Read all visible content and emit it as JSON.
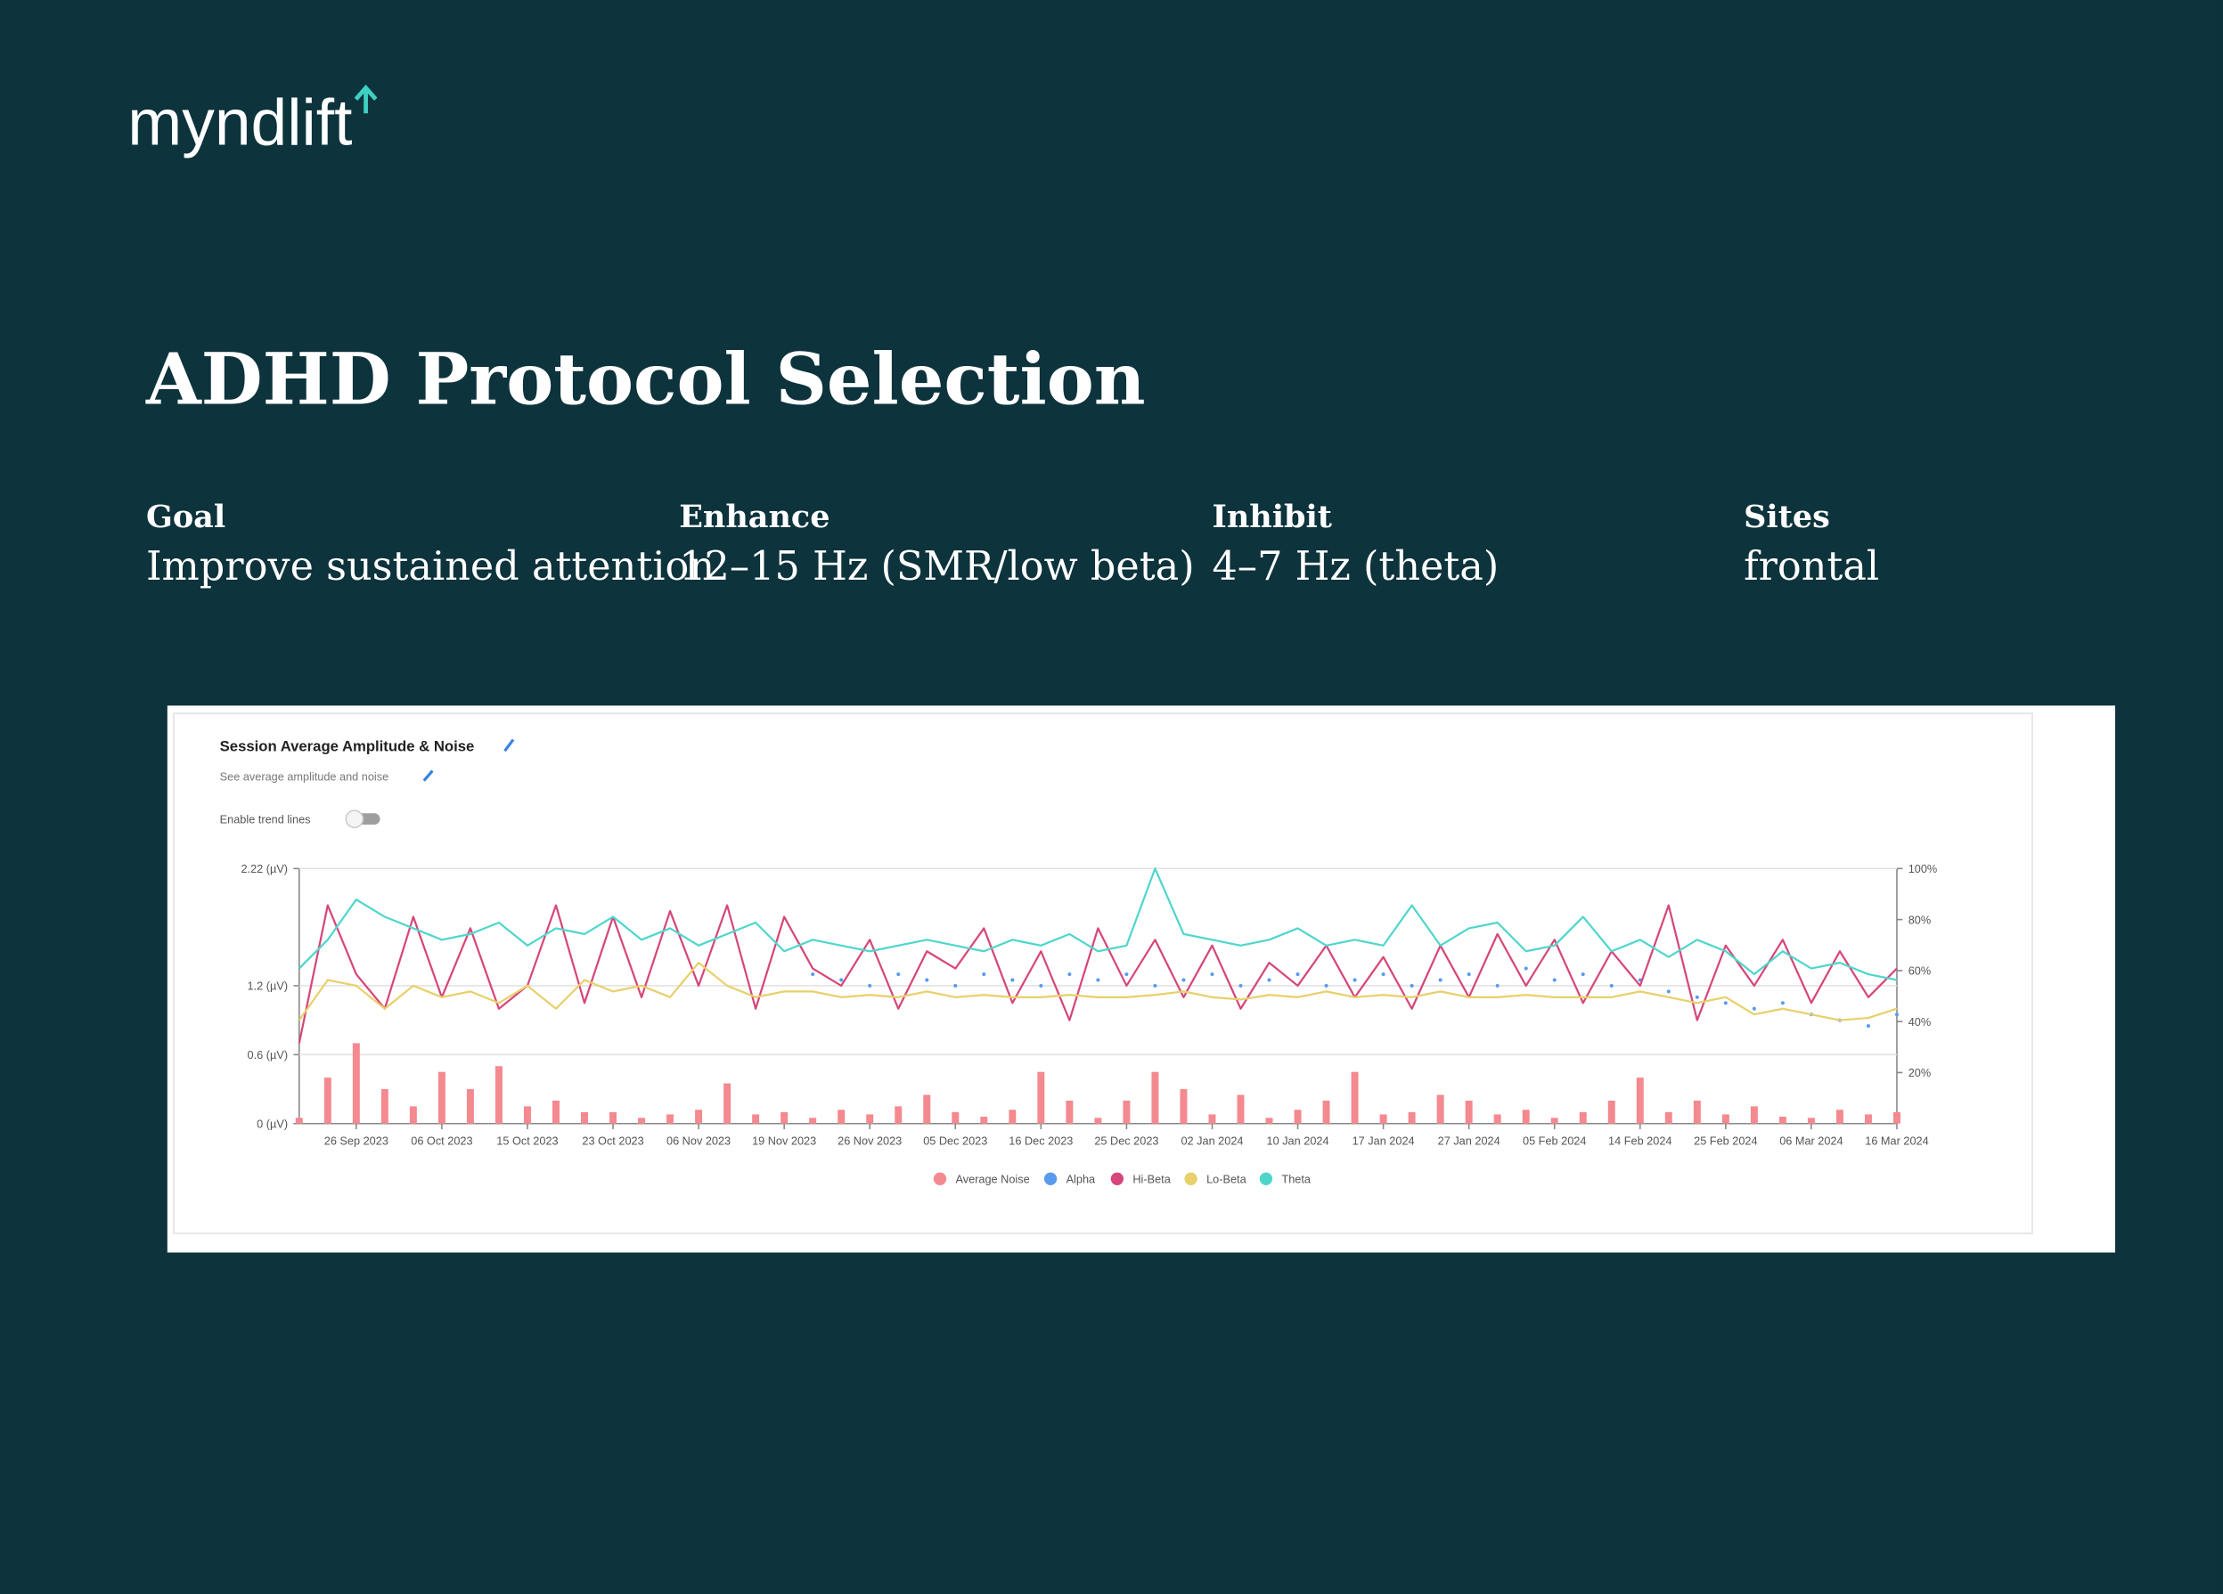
{
  "header": {
    "logo": "myndlift",
    "title": "ADHD Protocol Selection"
  },
  "protocol": [
    {
      "label": "Goal",
      "value": "Improve sustained attention"
    },
    {
      "label": "Enhance",
      "value": "12–15 Hz (SMR/low beta)"
    },
    {
      "label": "Inhibit",
      "value": "4–7 Hz (theta)"
    },
    {
      "label": "Sites",
      "value": "frontal"
    }
  ],
  "panel": {
    "subtitle": "See average amplitude and noise",
    "toggle_label": "Enable trend lines"
  },
  "chart_data": {
    "type": "line",
    "title": "Session Average Amplitude & Noise",
    "categories": [
      null,
      null,
      "26 Sep 2023",
      null,
      null,
      "06 Oct 2023",
      null,
      null,
      "15 Oct 2023",
      null,
      null,
      "23 Oct 2023",
      null,
      null,
      "06 Nov 2023",
      null,
      null,
      "19 Nov 2023",
      null,
      null,
      "26 Nov 2023",
      null,
      null,
      "05 Dec 2023",
      null,
      null,
      "16 Dec 2023",
      null,
      null,
      "25 Dec 2023",
      null,
      null,
      "02 Jan 2024",
      null,
      null,
      "10 Jan 2024",
      null,
      null,
      "17 Jan 2024",
      null,
      null,
      "27 Jan 2024",
      null,
      null,
      "05 Feb 2024",
      null,
      null,
      "14 Feb 2024",
      null,
      null,
      "25 Feb 2024",
      null,
      null,
      "06 Mar 2024",
      null,
      null,
      "16 Mar 2024"
    ],
    "series": [
      {
        "name": "Average Noise",
        "color": "#f4898f",
        "style": "bar",
        "values": [
          0.05,
          0.4,
          0.7,
          0.3,
          0.15,
          0.45,
          0.3,
          0.5,
          0.15,
          0.2,
          0.1,
          0.1,
          0.05,
          0.08,
          0.12,
          0.35,
          0.08,
          0.1,
          0.05,
          0.12,
          0.08,
          0.15,
          0.25,
          0.1,
          0.06,
          0.12,
          0.45,
          0.2,
          0.05,
          0.2,
          0.45,
          0.3,
          0.08,
          0.25,
          0.05,
          0.12,
          0.2,
          0.45,
          0.08,
          0.1,
          0.25,
          0.2,
          0.08,
          0.12,
          0.05,
          0.1,
          0.2,
          0.4,
          0.1,
          0.2,
          0.08,
          0.15,
          0.06,
          0.05,
          0.12,
          0.08,
          0.1
        ]
      },
      {
        "name": "Alpha",
        "color": "#5b9bef",
        "style": "dots",
        "values": [
          null,
          null,
          null,
          null,
          null,
          null,
          null,
          null,
          null,
          null,
          null,
          null,
          null,
          null,
          null,
          null,
          null,
          null,
          1.3,
          1.25,
          1.2,
          1.3,
          1.25,
          1.2,
          1.3,
          1.25,
          1.2,
          1.3,
          1.25,
          1.3,
          1.2,
          1.25,
          1.3,
          1.2,
          1.25,
          1.3,
          1.2,
          1.25,
          1.3,
          1.2,
          1.25,
          1.3,
          1.2,
          1.35,
          1.25,
          1.3,
          1.2,
          1.25,
          1.15,
          1.1,
          1.05,
          1.0,
          1.05,
          0.95,
          0.9,
          0.85,
          0.95
        ]
      },
      {
        "name": "Hi-Beta",
        "color": "#d6467a",
        "style": "line",
        "values": [
          0.7,
          1.9,
          1.3,
          1.0,
          1.8,
          1.1,
          1.7,
          1.0,
          1.2,
          1.9,
          1.05,
          1.8,
          1.1,
          1.85,
          1.2,
          1.9,
          1.0,
          1.8,
          1.35,
          1.2,
          1.6,
          1.0,
          1.5,
          1.35,
          1.7,
          1.05,
          1.5,
          0.9,
          1.7,
          1.2,
          1.6,
          1.1,
          1.55,
          1.0,
          1.4,
          1.2,
          1.55,
          1.1,
          1.45,
          1.0,
          1.55,
          1.1,
          1.65,
          1.2,
          1.6,
          1.05,
          1.5,
          1.2,
          1.9,
          0.9,
          1.55,
          1.2,
          1.6,
          1.05,
          1.5,
          1.1,
          1.35
        ]
      },
      {
        "name": "Lo-Beta",
        "color": "#e8d06a",
        "style": "line",
        "values": [
          0.9,
          1.25,
          1.2,
          1.0,
          1.2,
          1.1,
          1.15,
          1.05,
          1.2,
          1.0,
          1.25,
          1.15,
          1.2,
          1.1,
          1.4,
          1.2,
          1.1,
          1.15,
          1.15,
          1.1,
          1.12,
          1.1,
          1.15,
          1.1,
          1.12,
          1.1,
          1.1,
          1.12,
          1.1,
          1.1,
          1.12,
          1.15,
          1.1,
          1.08,
          1.12,
          1.1,
          1.15,
          1.1,
          1.12,
          1.1,
          1.15,
          1.1,
          1.1,
          1.12,
          1.1,
          1.1,
          1.1,
          1.15,
          1.1,
          1.05,
          1.1,
          0.95,
          1.0,
          0.95,
          0.9,
          0.92,
          1.0
        ]
      },
      {
        "name": "Theta",
        "color": "#4fd6cc",
        "style": "line",
        "values": [
          1.35,
          1.6,
          1.95,
          1.8,
          1.7,
          1.6,
          1.65,
          1.75,
          1.55,
          1.7,
          1.65,
          1.8,
          1.6,
          1.7,
          1.55,
          1.65,
          1.75,
          1.5,
          1.6,
          1.55,
          1.5,
          1.55,
          1.6,
          1.55,
          1.5,
          1.6,
          1.55,
          1.65,
          1.5,
          1.55,
          2.22,
          1.65,
          1.6,
          1.55,
          1.6,
          1.7,
          1.55,
          1.6,
          1.55,
          1.9,
          1.55,
          1.7,
          1.75,
          1.5,
          1.55,
          1.8,
          1.5,
          1.6,
          1.45,
          1.6,
          1.5,
          1.3,
          1.5,
          1.35,
          1.4,
          1.3,
          1.25
        ]
      }
    ],
    "ylim": [
      0,
      2.22
    ],
    "yticks": [
      {
        "value": 0,
        "label": "0 (µV)"
      },
      {
        "value": 0.6,
        "label": "0.6 (µV)"
      },
      {
        "value": 1.2,
        "label": "1.2 (µV)"
      },
      {
        "value": 2.22,
        "label": "2.22 (µV)"
      }
    ],
    "y2lim": [
      0,
      100
    ],
    "y2ticks": [
      {
        "value": 20,
        "label": "20%"
      },
      {
        "value": 40,
        "label": "40%"
      },
      {
        "value": 60,
        "label": "60%"
      },
      {
        "value": 80,
        "label": "80%"
      },
      {
        "value": 100,
        "label": "100%"
      }
    ],
    "grid": true,
    "legend": "bottom"
  }
}
